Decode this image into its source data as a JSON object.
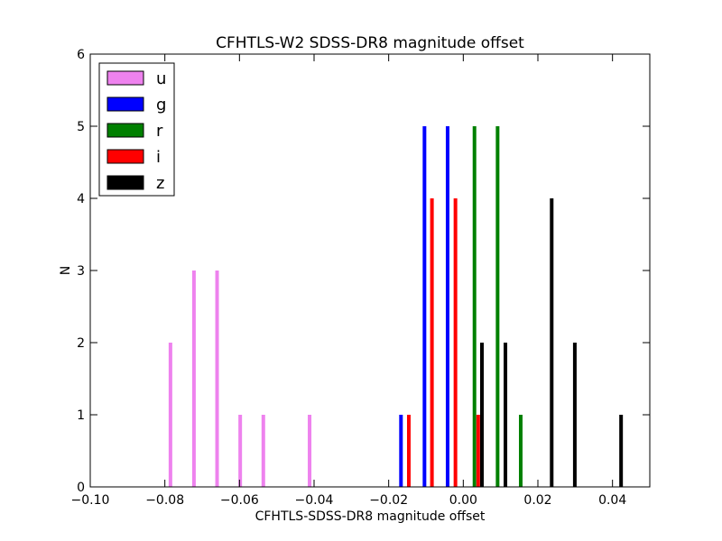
{
  "chart_data": {
    "type": "bar",
    "title": "CFHTLS-W2 SDSS-DR8 magnitude offset",
    "xlabel": "CFHTLS-SDSS-DR8 magnitude offset",
    "ylabel": "N",
    "xlim": [
      -0.1,
      0.05
    ],
    "ylim": [
      0,
      6
    ],
    "xticks": [
      "−0.10",
      "−0.08",
      "−0.06",
      "−0.04",
      "−0.02",
      "0.00",
      "0.02",
      "0.04"
    ],
    "yticks": [
      "0",
      "1",
      "2",
      "3",
      "4",
      "5",
      "6"
    ],
    "legend_position": "top-left",
    "grid": false,
    "series": [
      {
        "name": "u",
        "color": "#ee82ee",
        "bars": [
          {
            "x": -0.0785,
            "count": 2
          },
          {
            "x": -0.0722,
            "count": 3
          },
          {
            "x": -0.066,
            "count": 3
          },
          {
            "x": -0.0598,
            "count": 1
          },
          {
            "x": -0.0536,
            "count": 1
          },
          {
            "x": -0.0412,
            "count": 1
          }
        ]
      },
      {
        "name": "g",
        "color": "#0000ff",
        "bars": [
          {
            "x": -0.0167,
            "count": 1
          },
          {
            "x": -0.0104,
            "count": 5
          },
          {
            "x": -0.0042,
            "count": 5
          }
        ]
      },
      {
        "name": "r",
        "color": "#008000",
        "bars": [
          {
            "x": 0.003,
            "count": 5
          },
          {
            "x": 0.0092,
            "count": 5
          },
          {
            "x": 0.0154,
            "count": 1
          }
        ]
      },
      {
        "name": "i",
        "color": "#ff0000",
        "bars": [
          {
            "x": -0.0146,
            "count": 1
          },
          {
            "x": -0.0084,
            "count": 4
          },
          {
            "x": -0.0021,
            "count": 4
          },
          {
            "x": 0.004,
            "count": 1
          }
        ]
      },
      {
        "name": "z",
        "color": "#000000",
        "bars": [
          {
            "x": 0.005,
            "count": 2
          },
          {
            "x": 0.0113,
            "count": 2
          },
          {
            "x": 0.0237,
            "count": 4
          },
          {
            "x": 0.0299,
            "count": 2
          },
          {
            "x": 0.0423,
            "count": 1
          }
        ]
      }
    ]
  }
}
